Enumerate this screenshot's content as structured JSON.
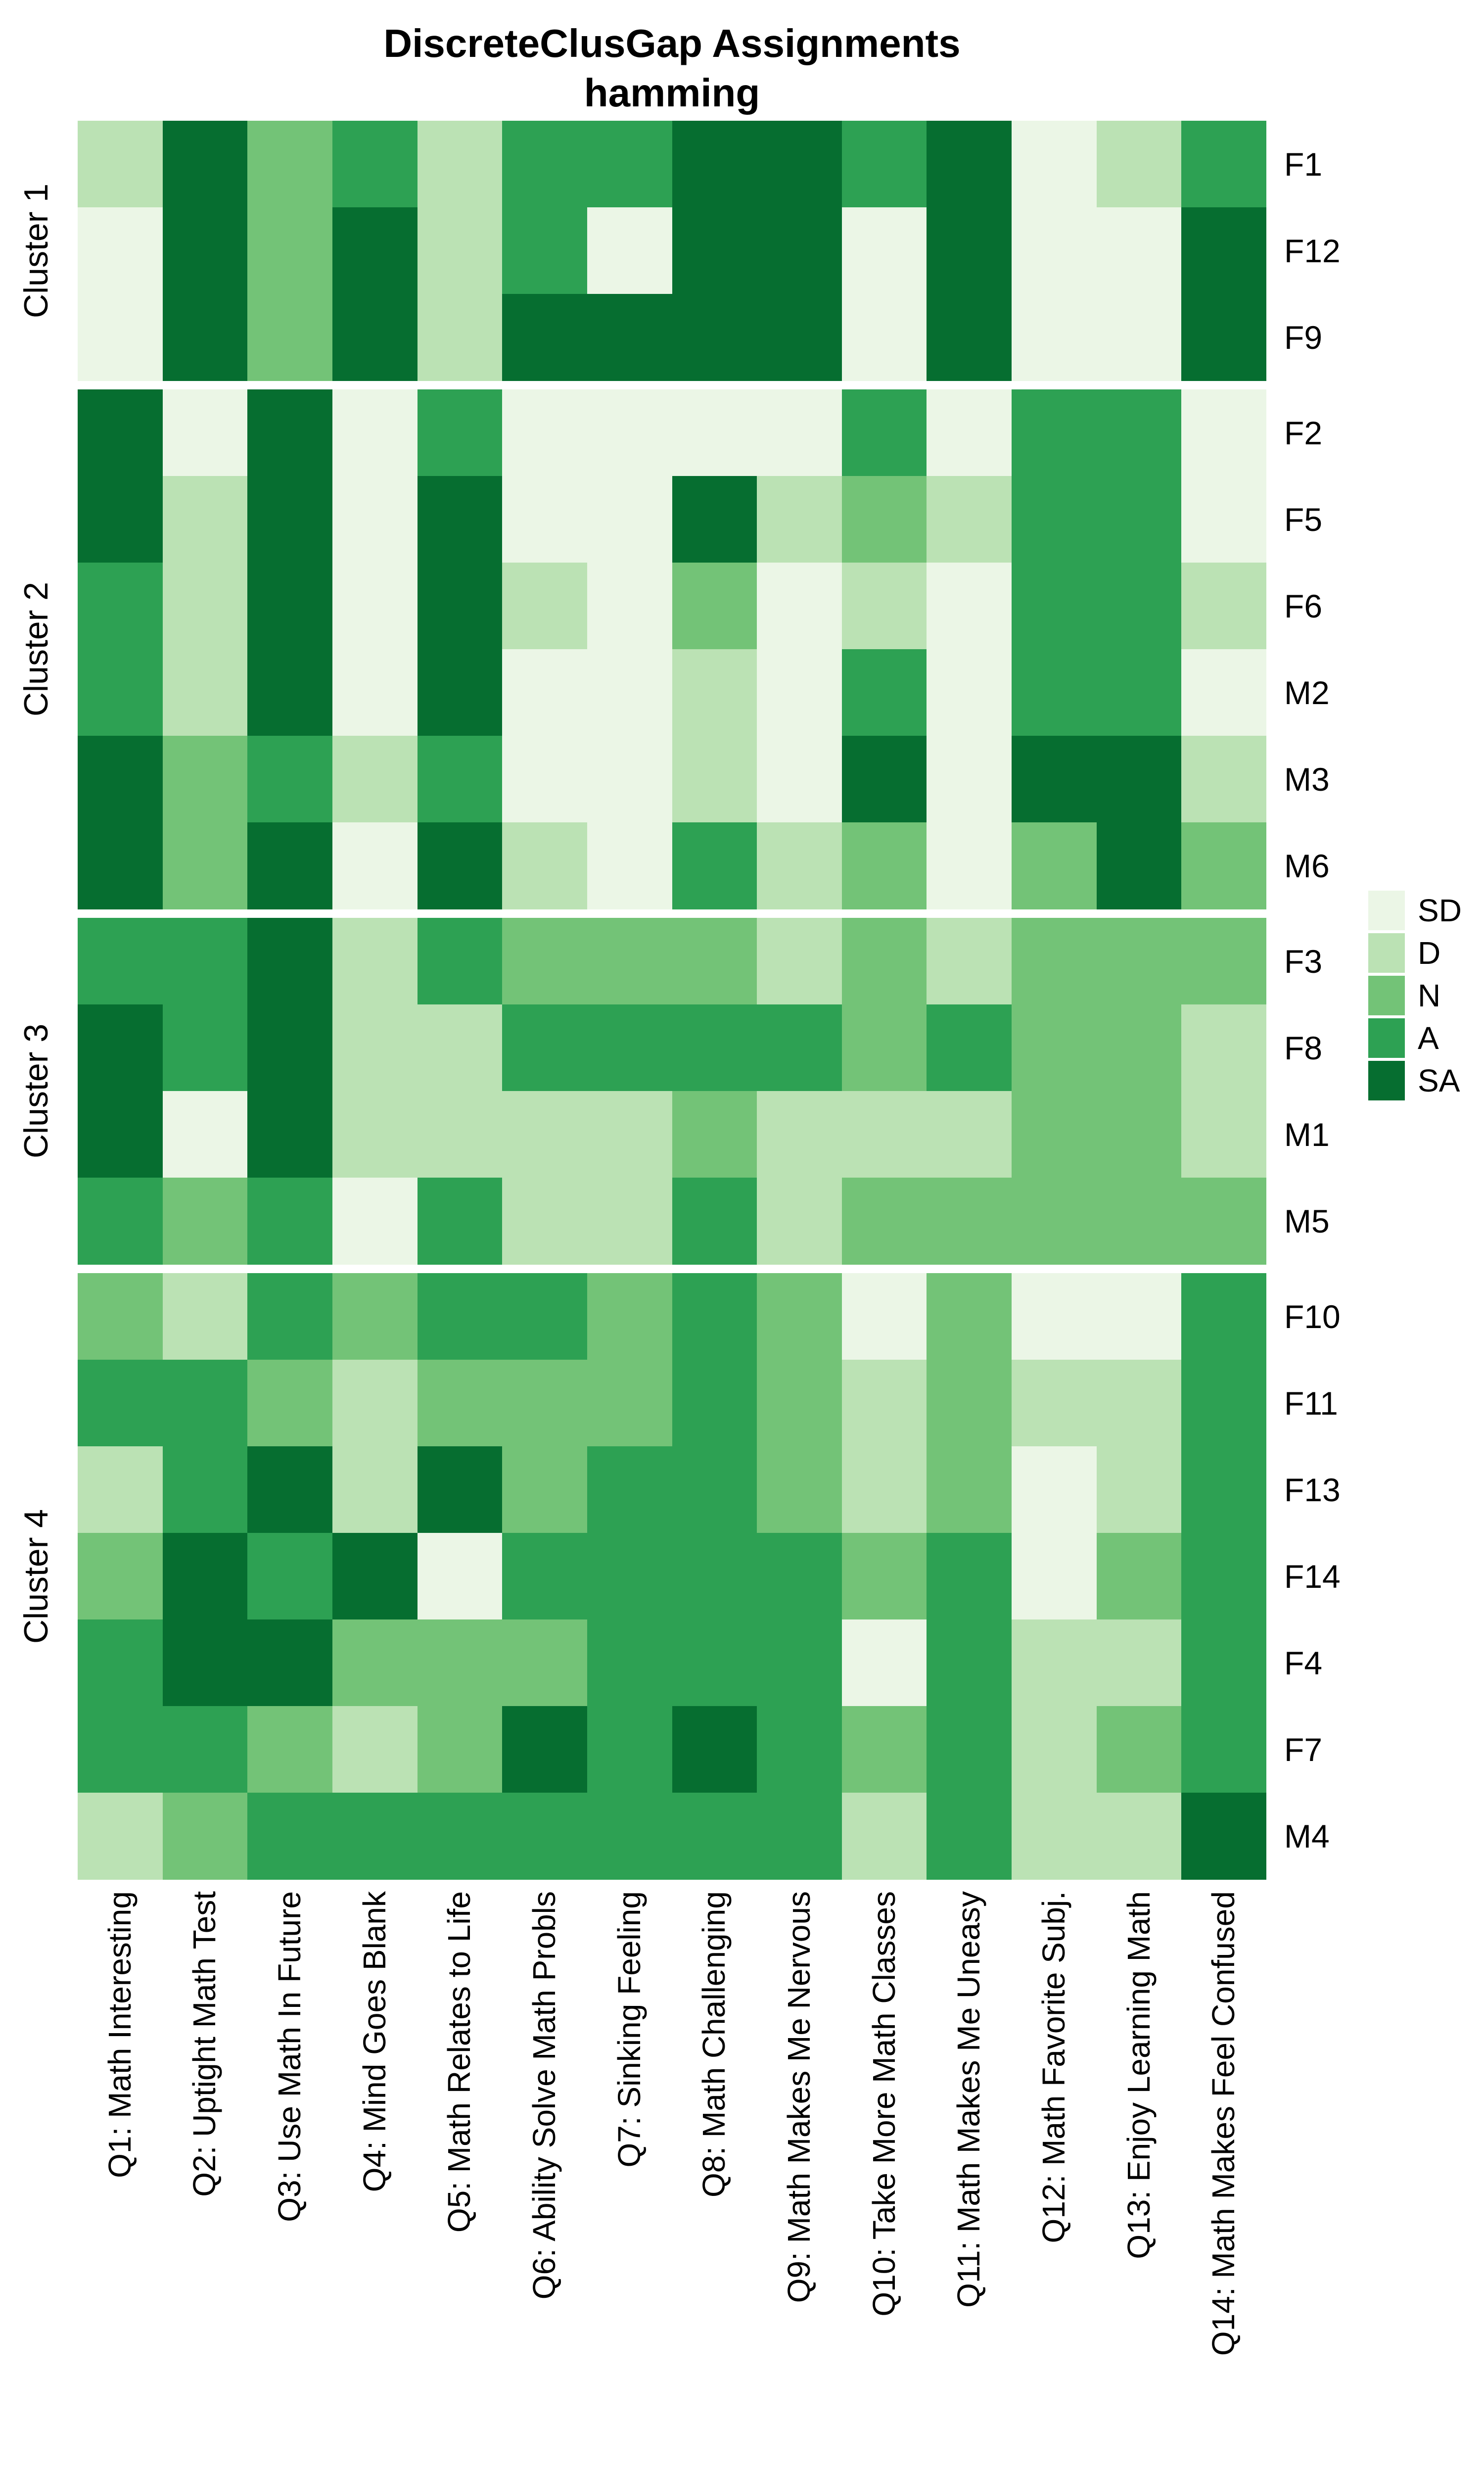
{
  "title": {
    "line1": "DiscreteClusGap Assignments",
    "line2": "hamming"
  },
  "chart_data": {
    "type": "heatmap",
    "title": "DiscreteClusGap Assignments",
    "subtitle": "hamming",
    "grid": false,
    "legend_position": "right",
    "value_scale": [
      "SD",
      "D",
      "N",
      "A",
      "SA"
    ],
    "colors": {
      "SD": "#ebf6e6",
      "D": "#bbe2b4",
      "N": "#73c377",
      "A": "#2da153",
      "SA": "#066e30"
    },
    "columns": [
      "Q1: Math Interesting",
      "Q2: Uptight Math Test",
      "Q3: Use Math In Future",
      "Q4: Mind Goes Blank",
      "Q5: Math Relates to Life",
      "Q6: Ability Solve Math Probls",
      "Q7: Sinking Feeling",
      "Q8: Math Challenging",
      "Q9: Math Makes Me Nervous",
      "Q10: Take More Math Classes",
      "Q11: Math Makes Me Uneasy",
      "Q12: Math Favorite Subj.",
      "Q13: Enjoy Learning Math",
      "Q14: Math Makes Feel Confused"
    ],
    "clusters": [
      {
        "name": "Cluster 1",
        "rows": [
          {
            "label": "F1",
            "values": [
              "D",
              "SA",
              "N",
              "A",
              "D",
              "A",
              "A",
              "SA",
              "SA",
              "A",
              "SA",
              "SD",
              "D",
              "A"
            ]
          },
          {
            "label": "F12",
            "values": [
              "SD",
              "SA",
              "N",
              "SA",
              "D",
              "A",
              "SD",
              "SA",
              "SA",
              "SD",
              "SA",
              "SD",
              "SD",
              "SA"
            ]
          },
          {
            "label": "F9",
            "values": [
              "SD",
              "SA",
              "N",
              "SA",
              "D",
              "SA",
              "SA",
              "SA",
              "SA",
              "SD",
              "SA",
              "SD",
              "SD",
              "SA"
            ]
          }
        ]
      },
      {
        "name": "Cluster 2",
        "rows": [
          {
            "label": "F2",
            "values": [
              "SA",
              "SD",
              "SA",
              "SD",
              "A",
              "SD",
              "SD",
              "SD",
              "SD",
              "A",
              "SD",
              "A",
              "A",
              "SD"
            ]
          },
          {
            "label": "F5",
            "values": [
              "SA",
              "D",
              "SA",
              "SD",
              "SA",
              "SD",
              "SD",
              "SA",
              "D",
              "N",
              "D",
              "A",
              "A",
              "SD"
            ]
          },
          {
            "label": "F6",
            "values": [
              "A",
              "D",
              "SA",
              "SD",
              "SA",
              "D",
              "SD",
              "N",
              "SD",
              "D",
              "SD",
              "A",
              "A",
              "D"
            ]
          },
          {
            "label": "M2",
            "values": [
              "A",
              "D",
              "SA",
              "SD",
              "SA",
              "SD",
              "SD",
              "D",
              "SD",
              "A",
              "SD",
              "A",
              "A",
              "SD"
            ]
          },
          {
            "label": "M3",
            "values": [
              "SA",
              "N",
              "A",
              "D",
              "A",
              "SD",
              "SD",
              "D",
              "SD",
              "SA",
              "SD",
              "SA",
              "SA",
              "D"
            ]
          },
          {
            "label": "M6",
            "values": [
              "SA",
              "N",
              "SA",
              "SD",
              "SA",
              "D",
              "SD",
              "A",
              "D",
              "N",
              "SD",
              "N",
              "SA",
              "N"
            ]
          }
        ]
      },
      {
        "name": "Cluster 3",
        "rows": [
          {
            "label": "F3",
            "values": [
              "A",
              "A",
              "SA",
              "D",
              "A",
              "N",
              "N",
              "N",
              "D",
              "N",
              "D",
              "N",
              "N",
              "N"
            ]
          },
          {
            "label": "F8",
            "values": [
              "SA",
              "A",
              "SA",
              "D",
              "D",
              "A",
              "A",
              "A",
              "A",
              "N",
              "A",
              "N",
              "N",
              "D"
            ]
          },
          {
            "label": "M1",
            "values": [
              "SA",
              "SD",
              "SA",
              "D",
              "D",
              "D",
              "D",
              "N",
              "D",
              "D",
              "D",
              "N",
              "N",
              "D"
            ]
          },
          {
            "label": "M5",
            "values": [
              "A",
              "N",
              "A",
              "SD",
              "A",
              "D",
              "D",
              "A",
              "D",
              "N",
              "N",
              "N",
              "N",
              "N"
            ]
          }
        ]
      },
      {
        "name": "Cluster 4",
        "rows": [
          {
            "label": "F10",
            "values": [
              "N",
              "D",
              "A",
              "N",
              "A",
              "A",
              "N",
              "A",
              "N",
              "SD",
              "N",
              "SD",
              "SD",
              "A"
            ]
          },
          {
            "label": "F11",
            "values": [
              "A",
              "A",
              "N",
              "D",
              "N",
              "N",
              "N",
              "A",
              "N",
              "D",
              "N",
              "D",
              "D",
              "A"
            ]
          },
          {
            "label": "F13",
            "values": [
              "D",
              "A",
              "SA",
              "D",
              "SA",
              "N",
              "A",
              "A",
              "N",
              "D",
              "N",
              "SD",
              "D",
              "A"
            ]
          },
          {
            "label": "F14",
            "values": [
              "N",
              "SA",
              "A",
              "SA",
              "SD",
              "A",
              "A",
              "A",
              "A",
              "N",
              "A",
              "SD",
              "N",
              "A"
            ]
          },
          {
            "label": "F4",
            "values": [
              "A",
              "SA",
              "SA",
              "N",
              "N",
              "N",
              "A",
              "A",
              "A",
              "SD",
              "A",
              "D",
              "D",
              "A"
            ]
          },
          {
            "label": "F7",
            "values": [
              "A",
              "A",
              "N",
              "D",
              "N",
              "SA",
              "A",
              "SA",
              "A",
              "N",
              "A",
              "D",
              "N",
              "A"
            ]
          },
          {
            "label": "M4",
            "values": [
              "D",
              "N",
              "A",
              "A",
              "A",
              "A",
              "A",
              "A",
              "A",
              "D",
              "A",
              "D",
              "D",
              "SA"
            ]
          }
        ]
      }
    ],
    "legend": [
      {
        "label": "SD",
        "color": "#ebf6e6"
      },
      {
        "label": "D",
        "color": "#bbe2b4"
      },
      {
        "label": "N",
        "color": "#73c377"
      },
      {
        "label": "A",
        "color": "#2da153"
      },
      {
        "label": "SA",
        "color": "#066e30"
      }
    ]
  }
}
